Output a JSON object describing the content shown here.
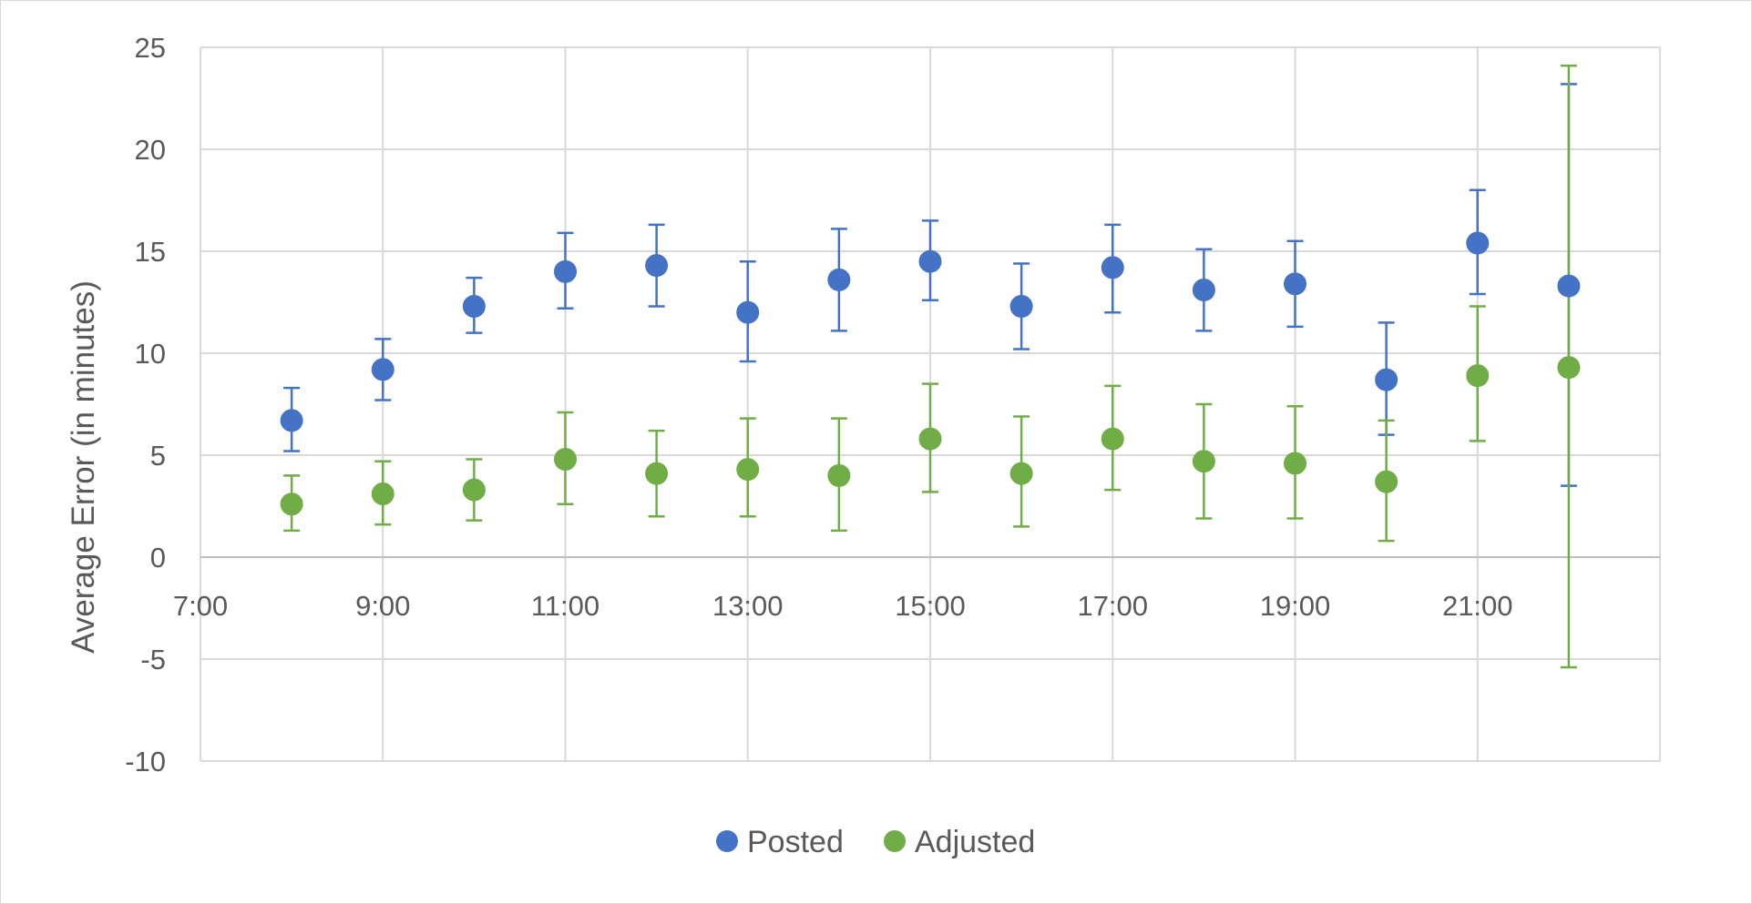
{
  "chart_data": {
    "type": "scatter",
    "title": "",
    "xlabel": "",
    "ylabel": "Average Error (in minutes)",
    "xlim": [
      "7:00",
      "23:00"
    ],
    "ylim": [
      -10,
      25
    ],
    "x_ticks": [
      "7:00",
      "9:00",
      "11:00",
      "13:00",
      "15:00",
      "17:00",
      "19:00",
      "21:00"
    ],
    "y_ticks": [
      25,
      20,
      15,
      10,
      5,
      0,
      -5,
      -10
    ],
    "grid": true,
    "legend_position": "bottom",
    "x": [
      "8:00",
      "9:00",
      "10:00",
      "11:00",
      "12:00",
      "13:00",
      "14:00",
      "15:00",
      "16:00",
      "17:00",
      "18:00",
      "19:00",
      "20:00",
      "21:00",
      "22:00"
    ],
    "series": [
      {
        "name": "Posted",
        "color": "#4472c4",
        "values": [
          6.7,
          9.2,
          12.3,
          14.0,
          14.3,
          12.0,
          13.6,
          14.5,
          12.3,
          14.2,
          13.1,
          13.4,
          8.7,
          15.4,
          13.3
        ],
        "error_low": [
          5.2,
          7.7,
          11.0,
          12.2,
          12.3,
          9.6,
          11.1,
          12.6,
          10.2,
          12.0,
          11.1,
          11.3,
          6.0,
          12.9,
          3.5
        ],
        "error_high": [
          8.3,
          10.7,
          13.7,
          15.9,
          16.3,
          14.5,
          16.1,
          16.5,
          14.4,
          16.3,
          15.1,
          15.5,
          11.5,
          18.0,
          23.2
        ]
      },
      {
        "name": "Adjusted",
        "color": "#70ad47",
        "values": [
          2.6,
          3.1,
          3.3,
          4.8,
          4.1,
          4.3,
          4.0,
          5.8,
          4.1,
          5.8,
          4.7,
          4.6,
          3.7,
          8.9,
          9.3
        ],
        "error_low": [
          1.3,
          1.6,
          1.8,
          2.6,
          2.0,
          2.0,
          1.3,
          3.2,
          1.5,
          3.3,
          1.9,
          1.9,
          0.8,
          5.7,
          -5.4
        ],
        "error_high": [
          4.0,
          4.7,
          4.8,
          7.1,
          6.2,
          6.8,
          6.8,
          8.5,
          6.9,
          8.4,
          7.5,
          7.4,
          6.7,
          12.3,
          24.1
        ]
      }
    ]
  }
}
